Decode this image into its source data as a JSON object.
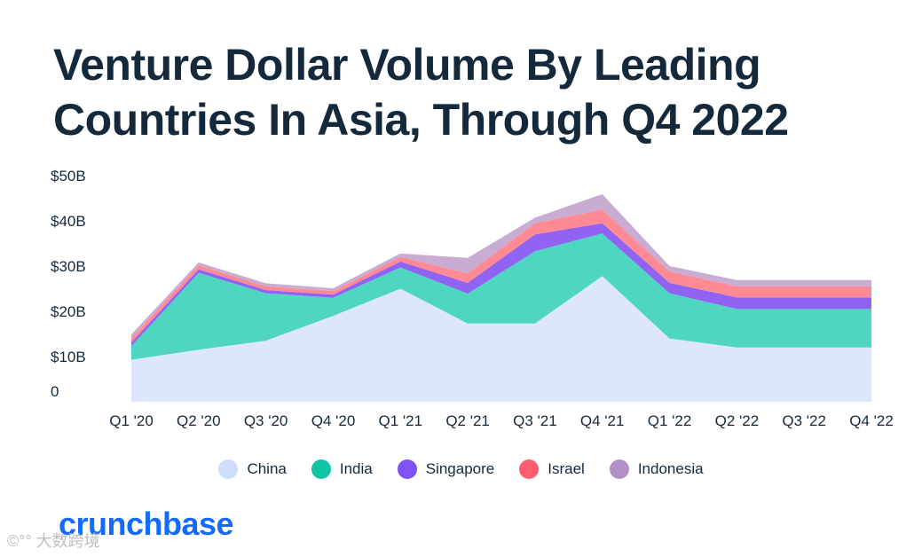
{
  "title_lines": [
    "Venture Dollar Volume By Leading",
    "Countries In Asia, Through Q4 2022"
  ],
  "brand": "crunchbase",
  "watermark": "©°° 大数跨境",
  "colors": {
    "China": "#dde6fc",
    "India": "#4ed6c0",
    "Singapore": "#9163f2",
    "Israel": "#ff8a93",
    "Indonesia": "#c9acd2"
  },
  "legend_colors": {
    "China": "#cfdcfa",
    "India": "#10c4a6",
    "Singapore": "#7e52f4",
    "Israel": "#ff5c6e",
    "Indonesia": "#b28fc6"
  },
  "chart_data": {
    "type": "area",
    "stacked": true,
    "title": "Venture Dollar Volume By Leading Countries In Asia, Through Q4 2022",
    "categories": [
      "Q1 '20",
      "Q2 '20",
      "Q3 '20",
      "Q4 '20",
      "Q1 '21",
      "Q2 '21",
      "Q3 '21",
      "Q4 '21",
      "Q1 '22",
      "Q2 '22",
      "Q3 '22",
      "Q4 '22"
    ],
    "y_tick_labels": [
      "0",
      "$10B",
      "$20B",
      "$30B",
      "$40B",
      "$50B"
    ],
    "y_tick_values": [
      0,
      10,
      20,
      30,
      40,
      50
    ],
    "ylim": [
      0,
      50
    ],
    "unit": "$B",
    "grid": false,
    "legend_position": "bottom",
    "series": [
      {
        "name": "China",
        "values": [
          9.3,
          11.5,
          13.5,
          19.0,
          25.0,
          17.3,
          17.3,
          27.8,
          14.0,
          12.0,
          12.0,
          12.0
        ]
      },
      {
        "name": "India",
        "values": [
          3.0,
          17.0,
          10.5,
          4.0,
          4.7,
          6.6,
          16.0,
          9.4,
          10.0,
          8.5,
          8.5,
          8.5
        ]
      },
      {
        "name": "Singapore",
        "values": [
          0.8,
          0.8,
          0.7,
          0.7,
          1.3,
          2.4,
          3.7,
          2.3,
          2.3,
          2.6,
          2.6,
          2.6
        ]
      },
      {
        "name": "Israel",
        "values": [
          1.0,
          0.9,
          0.8,
          0.8,
          1.0,
          2.1,
          2.5,
          3.0,
          2.5,
          2.4,
          2.4,
          2.4
        ]
      },
      {
        "name": "Indonesia",
        "values": [
          0.8,
          0.6,
          0.7,
          0.6,
          0.8,
          3.4,
          1.2,
          3.4,
          1.2,
          1.4,
          1.4,
          1.4
        ]
      }
    ]
  }
}
